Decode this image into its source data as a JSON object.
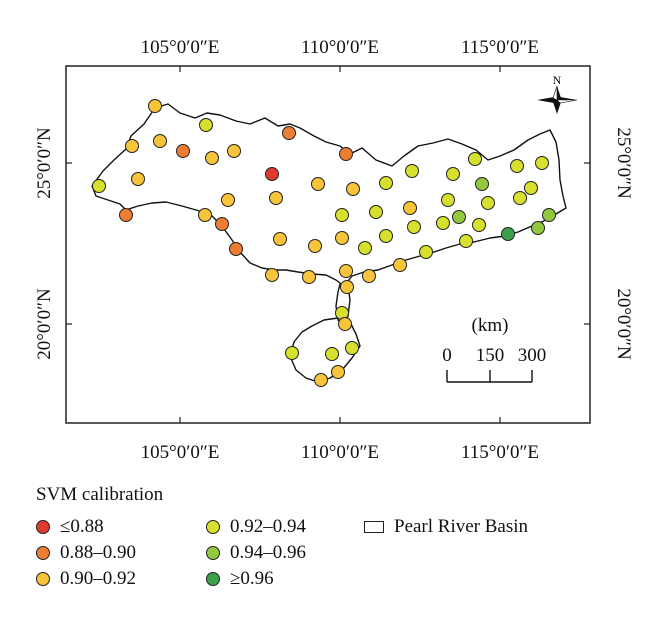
{
  "map": {
    "top_lon_labels": [
      "105°0′0″E",
      "110°0′0″E",
      "115°0′0″E"
    ],
    "bottom_lon_labels": [
      "105°0′0″E",
      "110°0′0″E",
      "115°0′0″E"
    ],
    "left_lat_labels": [
      "25°0′0″N",
      "20°0′0″N"
    ],
    "right_lat_labels": [
      "25°0′0″N",
      "20°0′0″N"
    ],
    "north_label": "N",
    "scale": {
      "unit": "(km)",
      "ticks": [
        "0",
        "150",
        "300"
      ]
    }
  },
  "legend": {
    "title": "SVM calibration",
    "classes": [
      {
        "label": "≤0.88",
        "color": "#e03a2f"
      },
      {
        "label": "0.88–0.90",
        "color": "#ee7d34"
      },
      {
        "label": "0.90–0.92",
        "color": "#f7c43a"
      },
      {
        "label": "0.92–0.94",
        "color": "#d6e02d"
      },
      {
        "label": "0.94–0.96",
        "color": "#92c83e"
      },
      {
        "label": "≥0.96",
        "color": "#3ea04a"
      }
    ],
    "basin_label": "Pearl River Basin"
  }
}
